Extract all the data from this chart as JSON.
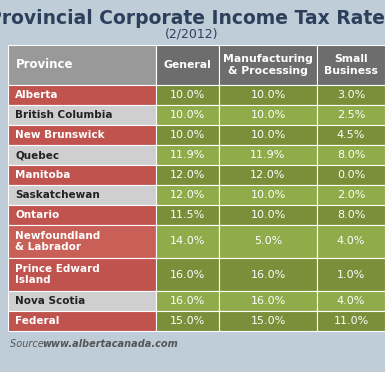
{
  "title": "Provincial Corporate Income Tax Rates",
  "subtitle": "(2/2012)",
  "source_italic": "Source: ",
  "source_bold": "www.albertacanada.com",
  "columns": [
    "Province",
    "General",
    "Manufacturing\n& Processing",
    "Small\nBusiness"
  ],
  "rows": [
    {
      "province": "Alberta",
      "general": "10.0%",
      "manuf": "10.0%",
      "small": "3.0%",
      "highlight": true
    },
    {
      "province": "British Columbia",
      "general": "10.0%",
      "manuf": "10.0%",
      "small": "2.5%",
      "highlight": false
    },
    {
      "province": "New Brunswick",
      "general": "10.0%",
      "manuf": "10.0%",
      "small": "4.5%",
      "highlight": true
    },
    {
      "province": "Quebec",
      "general": "11.9%",
      "manuf": "11.9%",
      "small": "8.0%",
      "highlight": false
    },
    {
      "province": "Manitoba",
      "general": "12.0%",
      "manuf": "12.0%",
      "small": "0.0%",
      "highlight": true
    },
    {
      "province": "Saskatchewan",
      "general": "12.0%",
      "manuf": "10.0%",
      "small": "2.0%",
      "highlight": false
    },
    {
      "province": "Ontario",
      "general": "11.5%",
      "manuf": "10.0%",
      "small": "8.0%",
      "highlight": true
    },
    {
      "province": "Newfoundland\n& Labrador",
      "general": "14.0%",
      "manuf": "5.0%",
      "small": "4.0%",
      "highlight": true
    },
    {
      "province": "Prince Edward\nIsland",
      "general": "16.0%",
      "manuf": "16.0%",
      "small": "1.0%",
      "highlight": true
    },
    {
      "province": "Nova Scotia",
      "general": "16.0%",
      "manuf": "16.0%",
      "small": "4.0%",
      "highlight": false
    },
    {
      "province": "Federal",
      "general": "15.0%",
      "manuf": "15.0%",
      "small": "11.0%",
      "highlight": true
    }
  ],
  "bg_color": "#bfcdd8",
  "header_province_bg": "#999999",
  "header_data_bg": "#6d6d6d",
  "header_text_color": "#ffffff",
  "row_red_bg": "#c0534e",
  "row_pink_bg": "#d4a09a",
  "row_white_bg": "#cfcfcf",
  "data_green_dark": "#7a8f3a",
  "data_green_light": "#8fab4a",
  "title_color": "#2e3f5c",
  "source_color": "#555555"
}
